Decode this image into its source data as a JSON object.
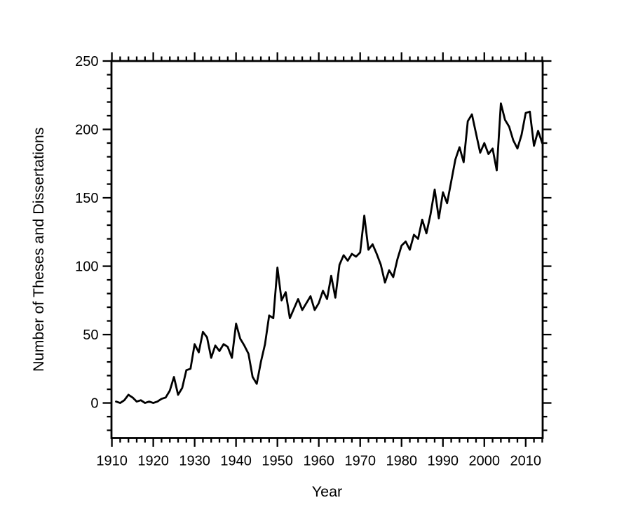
{
  "figure": {
    "background": "#ffffff",
    "line_color": "#000000",
    "axis_color": "#000000"
  },
  "chart_data": {
    "type": "line",
    "title": "",
    "xlabel": "Year",
    "ylabel": "Number of Theses and Dissertations",
    "legend": "none",
    "grid": "off",
    "x_range": [
      1909.9,
      2014.1
    ],
    "y_range": [
      -25.6,
      250
    ],
    "x_major_ticks": [
      1910,
      1920,
      1930,
      1940,
      1950,
      1960,
      1970,
      1980,
      1990,
      2000,
      2010
    ],
    "x_minor_step": 2,
    "y_major_ticks": [
      0,
      50,
      100,
      150,
      200,
      250
    ],
    "y_minor_step": 10,
    "x": [
      1911,
      1912,
      1913,
      1914,
      1915,
      1916,
      1917,
      1918,
      1919,
      1920,
      1921,
      1922,
      1923,
      1924,
      1925,
      1926,
      1927,
      1928,
      1929,
      1930,
      1931,
      1932,
      1933,
      1934,
      1935,
      1936,
      1937,
      1938,
      1939,
      1940,
      1941,
      1942,
      1943,
      1944,
      1945,
      1946,
      1947,
      1948,
      1949,
      1950,
      1951,
      1952,
      1953,
      1954,
      1955,
      1956,
      1957,
      1958,
      1959,
      1960,
      1961,
      1962,
      1963,
      1964,
      1965,
      1966,
      1967,
      1968,
      1969,
      1970,
      1971,
      1972,
      1973,
      1974,
      1975,
      1976,
      1977,
      1978,
      1979,
      1980,
      1981,
      1982,
      1983,
      1984,
      1985,
      1986,
      1987,
      1988,
      1989,
      1990,
      1991,
      1992,
      1993,
      1994,
      1995,
      1996,
      1997,
      1998,
      1999,
      2000,
      2001,
      2002,
      2003,
      2004,
      2005,
      2006,
      2007,
      2008,
      2009,
      2010,
      2011,
      2012,
      2013,
      2014
    ],
    "values": [
      1,
      0,
      2,
      6,
      4,
      1,
      2,
      0,
      1,
      0,
      1,
      3,
      4,
      9,
      19,
      6,
      11,
      24,
      25,
      43,
      37,
      52,
      48,
      33,
      42,
      38,
      43,
      41,
      33,
      58,
      47,
      42,
      36,
      19,
      14,
      30,
      43,
      64,
      62,
      99,
      75,
      81,
      62,
      69,
      76,
      68,
      73,
      78,
      68,
      73,
      82,
      76,
      93,
      77,
      101,
      108,
      104,
      109,
      107,
      110,
      137,
      112,
      116,
      109,
      101,
      88,
      97,
      92,
      105,
      115,
      118,
      112,
      123,
      120,
      134,
      124,
      138,
      156,
      135,
      154,
      146,
      162,
      178,
      187,
      176,
      206,
      211,
      197,
      183,
      190,
      182,
      186,
      170,
      219,
      207,
      202,
      192,
      186,
      196,
      212,
      213,
      188,
      199,
      190
    ]
  }
}
